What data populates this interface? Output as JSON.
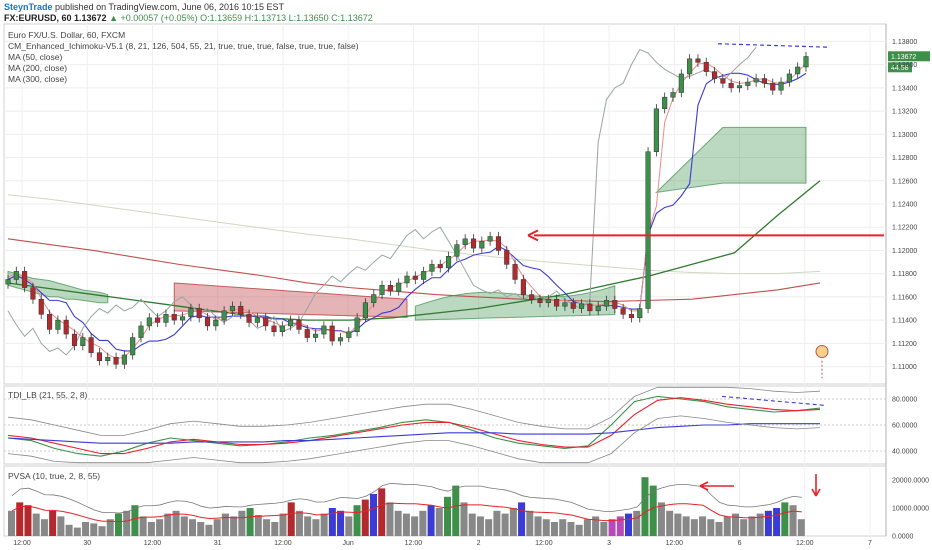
{
  "header": {
    "author": "SteynTrade",
    "published": "published on TradingView.com, June 06, 2016 10:15 EST",
    "symbol_line": "FX:EURUSD, 60  1.13672",
    "change": "+0.00057 (+0.05%)",
    "ohlc": "O:1.13659 H:1.13713 L:1.13650 C:1.13672"
  },
  "legend": {
    "title": "Euro FX/U.S. Dollar, 60, FXCM",
    "ichimoku": "CM_Enhanced_Ichimoku-V5.1 (8, 21, 126, 504, 55, 21, true, true, true, false, true, true, false)",
    "ma50": "MA (50, close)",
    "ma200": "MA (200, close)",
    "ma300": "MA (300, close)"
  },
  "panes": {
    "tdi": "TDI_LB (21, 55, 2, 8)",
    "pvsa": "PVSA (10, true, 2, 8, 55)"
  },
  "price_tags": {
    "last": "1.13672",
    "countdown": "44:58"
  },
  "colors": {
    "up": "#3d8f4a",
    "down": "#b2292e",
    "red_line": "#e8222a",
    "kijun": "#3b3bd6",
    "chikou": "#9aa5a0",
    "ma50": "#2f7a2f",
    "ma200": "#c0504d"
  },
  "chart_data": [
    {
      "type": "line",
      "title": "Euro FX/U.S. Dollar, 60, FXCM",
      "x_labels": [
        "12:00",
        "30",
        "12:00",
        "31",
        "12:00",
        "Jun",
        "12:00",
        "2",
        "12:00",
        "3",
        "12:00",
        "6",
        "12:00",
        "7"
      ],
      "y_ticks": [
        "1.13800",
        "1.13600",
        "1.13400",
        "1.13200",
        "1.13000",
        "1.12800",
        "1.12600",
        "1.12400",
        "1.12200",
        "1.12000",
        "1.11800",
        "1.11600",
        "1.11400",
        "1.11200",
        "1.11000"
      ],
      "ylim": [
        1.1085,
        1.1395
      ],
      "close": [
        1.1175,
        1.1182,
        1.1168,
        1.1158,
        1.1145,
        1.1132,
        1.114,
        1.1128,
        1.1118,
        1.1125,
        1.1112,
        1.1105,
        1.1108,
        1.1102,
        1.111,
        1.1125,
        1.1135,
        1.1142,
        1.1138,
        1.1145,
        1.114,
        1.1143,
        1.115,
        1.1142,
        1.1135,
        1.114,
        1.1148,
        1.1152,
        1.1145,
        1.1138,
        1.1142,
        1.1135,
        1.113,
        1.1135,
        1.114,
        1.1132,
        1.1125,
        1.1128,
        1.1135,
        1.1122,
        1.1125,
        1.113,
        1.1142,
        1.1155,
        1.1162,
        1.117,
        1.1165,
        1.1172,
        1.1178,
        1.1175,
        1.1182,
        1.1188,
        1.1185,
        1.1195,
        1.1205,
        1.121,
        1.1202,
        1.1208,
        1.1212,
        1.12,
        1.1188,
        1.1175,
        1.1162,
        1.1158,
        1.1155,
        1.1158,
        1.1152,
        1.1155,
        1.115,
        1.1154,
        1.1148,
        1.1152,
        1.1157,
        1.115,
        1.1145,
        1.1142,
        1.115,
        1.1285,
        1.1322,
        1.1332,
        1.1336,
        1.1352,
        1.1365,
        1.1362,
        1.1354,
        1.1348,
        1.1344,
        1.134,
        1.1342,
        1.1345,
        1.1348,
        1.1344,
        1.1338,
        1.1345,
        1.1352,
        1.1358,
        1.1367
      ],
      "hline": 1.1213,
      "series": [
        {
          "name": "MA (50, close)",
          "values": [
            1.1172,
            1.1167,
            1.1162,
            1.1157,
            1.1152,
            1.1147,
            1.1142,
            1.114,
            1.114,
            1.1142,
            1.1146,
            1.115,
            1.1156,
            1.1162,
            1.117,
            1.1178,
            1.1188,
            1.1198,
            1.123,
            1.126
          ]
        },
        {
          "name": "MA (200, close)",
          "values": [
            1.121,
            1.1205,
            1.12,
            1.1194,
            1.1188,
            1.1183,
            1.1178,
            1.1172,
            1.1168,
            1.1165,
            1.1162,
            1.116,
            1.1158,
            1.1157,
            1.1156,
            1.1157,
            1.1158,
            1.1162,
            1.1166,
            1.1172
          ]
        },
        {
          "name": "MA (300, close)",
          "values": [
            1.1248,
            1.1244,
            1.1239,
            1.1234,
            1.1229,
            1.1224,
            1.1219,
            1.1214,
            1.121,
            1.1205,
            1.12,
            1.1196,
            1.1192,
            1.1189,
            1.1186,
            1.1183,
            1.1181,
            1.118,
            1.118,
            1.1182
          ]
        }
      ]
    },
    {
      "type": "line",
      "title": "TDI_LB (21, 55, 2, 8)",
      "y_ticks": [
        "80.0000",
        "60.0000",
        "40.0000"
      ],
      "ylim": [
        30,
        90
      ],
      "series": [
        {
          "name": "",
          "values": [
            50,
            48,
            42,
            38,
            36,
            40,
            46,
            50,
            48,
            46,
            44,
            45,
            47,
            50,
            52,
            55,
            58,
            62,
            64,
            62,
            56,
            50,
            46,
            44,
            42,
            44,
            60,
            78,
            82,
            80,
            78,
            74,
            72,
            70,
            71,
            73
          ]
        },
        {
          "name": "",
          "values": [
            52,
            50,
            46,
            42,
            38,
            38,
            42,
            47,
            49,
            47,
            45,
            45,
            46,
            48,
            51,
            54,
            57,
            60,
            62,
            62,
            58,
            53,
            48,
            45,
            43,
            43,
            52,
            68,
            79,
            81,
            79,
            76,
            74,
            72,
            71,
            72
          ]
        },
        {
          "name": "",
          "values": [
            50,
            49,
            48,
            47,
            46,
            46,
            46,
            46,
            47,
            47,
            47,
            47,
            48,
            48,
            49,
            50,
            51,
            52,
            53,
            54,
            54,
            54,
            53,
            53,
            53,
            53,
            54,
            56,
            58,
            59,
            60,
            60,
            61,
            61,
            61,
            61
          ]
        }
      ]
    },
    {
      "type": "bar",
      "title": "PVSA (10, true, 2, 8, 55)",
      "y_ticks": [
        "20000.0000",
        "10000.0000",
        "0.0000"
      ],
      "ylim": [
        0,
        25000
      ],
      "values": [
        9000,
        12000,
        11000,
        8000,
        6000,
        9000,
        7000,
        4000,
        3000,
        5000,
        4500,
        3500,
        6000,
        8000,
        9000,
        11000,
        7000,
        5000,
        6000,
        8000,
        9000,
        7000,
        6000,
        5000,
        4000,
        6000,
        8000,
        7000,
        9000,
        10000,
        7500,
        6000,
        5000,
        8000,
        12000,
        9000,
        7000,
        6000,
        8000,
        10000,
        9000,
        7000,
        11000,
        13000,
        15000,
        17000,
        12000,
        9000,
        8000,
        7000,
        9000,
        11000,
        10000,
        14000,
        18000,
        12000,
        8000,
        7000,
        6000,
        9000,
        8000,
        10000,
        12000,
        9000,
        7000,
        6000,
        5000,
        6000,
        5000,
        4000,
        6000,
        7000,
        5000,
        6000,
        7000,
        8000,
        9000,
        21000,
        18000,
        12000,
        9000,
        8000,
        7000,
        6000,
        7000,
        6000,
        5000,
        7000,
        8000,
        6000,
        7000,
        8000,
        9000,
        10000,
        12000,
        11000,
        6000
      ],
      "colors": [
        "#888888",
        "#b2292e",
        "#b2292e",
        "#888888",
        "#888888",
        "#b2292e",
        "#888888",
        "#888888",
        "#888888",
        "#888888",
        "#888888",
        "#888888",
        "#888888",
        "#3d8f4a",
        "#888888",
        "#3d8f4a",
        "#888888",
        "#888888",
        "#888888",
        "#888888",
        "#888888",
        "#888888",
        "#888888",
        "#888888",
        "#888888",
        "#888888",
        "#888888",
        "#888888",
        "#888888",
        "#3d8f4a",
        "#888888",
        "#888888",
        "#888888",
        "#888888",
        "#b2292e",
        "#888888",
        "#888888",
        "#888888",
        "#888888",
        "#3b3bd6",
        "#3b3bd6",
        "#888888",
        "#3d8f4a",
        "#b2292e",
        "#3b3bd6",
        "#b2292e",
        "#888888",
        "#888888",
        "#888888",
        "#888888",
        "#888888",
        "#3b3bd6",
        "#888888",
        "#3d8f4a",
        "#3d8f4a",
        "#888888",
        "#888888",
        "#888888",
        "#888888",
        "#888888",
        "#888888",
        "#888888",
        "#3b3bd6",
        "#888888",
        "#888888",
        "#888888",
        "#888888",
        "#888888",
        "#888888",
        "#888888",
        "#888888",
        "#888888",
        "#888888",
        "#b84ab8",
        "#b84ab8",
        "#3b3bd6",
        "#888888",
        "#3d8f4a",
        "#3d8f4a",
        "#888888",
        "#888888",
        "#888888",
        "#888888",
        "#888888",
        "#888888",
        "#888888",
        "#888888",
        "#888888",
        "#888888",
        "#888888",
        "#888888",
        "#888888",
        "#3b3bd6",
        "#3b3bd6",
        "#3d8f4a",
        "#888888",
        "#888888"
      ]
    }
  ]
}
